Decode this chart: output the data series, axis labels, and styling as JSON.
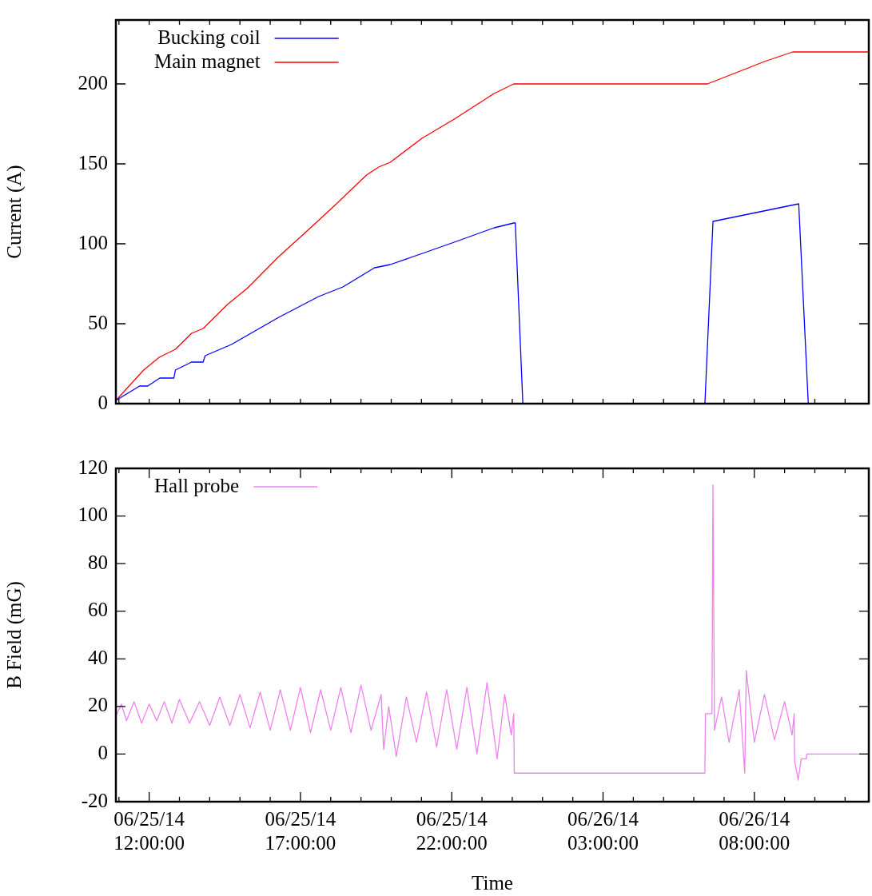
{
  "chart_data": [
    {
      "type": "line",
      "ylabel": "Current (A)",
      "legend": "top left",
      "grid": false,
      "tick_labels": "y",
      "xlim": [
        "--06-25T10:54",
        "--06-26T11:47"
      ],
      "xticks": [
        {
          "value": "--06-25T11:00",
          "label": null
        },
        {
          "value": "--06-25T12:00",
          "label": null
        },
        {
          "value": "--06-25T13:00",
          "label": null
        },
        {
          "value": "--06-25T14:00",
          "label": null
        },
        {
          "value": "--06-25T15:00",
          "label": null
        },
        {
          "value": "--06-25T16:00",
          "label": null
        },
        {
          "value": "--06-25T17:00",
          "label": null
        },
        {
          "value": "--06-25T18:00",
          "label": null
        },
        {
          "value": "--06-25T19:00",
          "label": null
        },
        {
          "value": "--06-25T20:00",
          "label": null
        },
        {
          "value": "--06-25T21:00",
          "label": null
        },
        {
          "value": "--06-25T22:00",
          "label": null
        },
        {
          "value": "--06-25T23:00",
          "label": null
        },
        {
          "value": "--06-26T00:00",
          "label": null
        },
        {
          "value": "--06-26T01:00",
          "label": null
        },
        {
          "value": "--06-26T02:00",
          "label": null
        },
        {
          "value": "--06-26T03:00",
          "label": null
        },
        {
          "value": "--06-26T04:00",
          "label": null
        },
        {
          "value": "--06-26T05:00",
          "label": null
        },
        {
          "value": "--06-26T06:00",
          "label": null
        },
        {
          "value": "--06-26T07:00",
          "label": null
        },
        {
          "value": "--06-26T08:00",
          "label": null
        },
        {
          "value": "--06-26T09:00",
          "label": null
        },
        {
          "value": "--06-26T10:00",
          "label": null
        },
        {
          "value": "--06-26T11:00",
          "label": null
        }
      ],
      "ylim": [
        0,
        240
      ],
      "yticks": [
        0,
        50,
        100,
        150,
        200
      ],
      "series": [
        {
          "name": "Bucking coil",
          "color": "#0000ff",
          "x": [
            "--06-25T10:54",
            "--06-25T11:41",
            "--06-25T11:57",
            "--06-25T12:21",
            "--06-25T12:49",
            "--06-25T12:52",
            "--06-25T13:24",
            "--06-25T13:47",
            "--06-25T13:51",
            "--06-25T14:43",
            "--06-25T16:17",
            "--06-25T17:36",
            "--06-25T18:24",
            "--06-25T19:27",
            "--06-25T19:58",
            "--06-25T21:02",
            "--06-25T22:05",
            "--06-25T23:24",
            "--06-26T00:03",
            "--06-26T00:06",
            "--06-26T00:21",
            "--06-26T06:22",
            "--06-26T06:38",
            "--06-26T09:28",
            "--06-26T09:47"
          ],
          "values": [
            2,
            11,
            11,
            16,
            16,
            21,
            26,
            26,
            30,
            37,
            54,
            67,
            73,
            85,
            87,
            94,
            101,
            110,
            113,
            113,
            0,
            0,
            114,
            125,
            0
          ]
        },
        {
          "name": "Main magnet",
          "color": "#ff0000",
          "x": [
            "--06-25T10:54",
            "--06-25T11:49",
            "--06-25T12:20",
            "--06-25T12:52",
            "--06-25T13:24",
            "--06-25T13:47",
            "--06-25T14:35",
            "--06-25T15:14",
            "--06-25T16:17",
            "--06-25T17:20",
            "--06-25T18:08",
            "--06-25T19:11",
            "--06-25T19:35",
            "--06-25T19:58",
            "--06-25T21:01",
            "--06-25T22:05",
            "--06-25T23:24",
            "--06-26T00:03",
            "--06-26T06:27",
            "--06-26T08:20",
            "--06-26T09:16",
            "--06-26T11:47"
          ],
          "values": [
            2,
            21,
            29,
            34,
            44,
            47,
            62,
            72,
            92,
            110,
            124,
            143,
            148,
            151,
            166,
            178,
            194,
            200,
            200,
            214,
            220,
            220
          ]
        }
      ]
    },
    {
      "type": "line",
      "xlabel": "Time",
      "ylabel": "B Field (mG)",
      "legend": "top left",
      "grid": false,
      "xlim": [
        "--06-25T10:54",
        "--06-26T11:47"
      ],
      "xticks": [
        {
          "value": "--06-25T11:00",
          "label": null
        },
        {
          "value": "--06-25T12:00",
          "label": "06/25/14\n12:00:00"
        },
        {
          "value": "--06-25T13:00",
          "label": null
        },
        {
          "value": "--06-25T14:00",
          "label": null
        },
        {
          "value": "--06-25T15:00",
          "label": null
        },
        {
          "value": "--06-25T16:00",
          "label": null
        },
        {
          "value": "--06-25T17:00",
          "label": "06/25/14\n17:00:00"
        },
        {
          "value": "--06-25T18:00",
          "label": null
        },
        {
          "value": "--06-25T19:00",
          "label": null
        },
        {
          "value": "--06-25T20:00",
          "label": null
        },
        {
          "value": "--06-25T21:00",
          "label": null
        },
        {
          "value": "--06-25T22:00",
          "label": "06/25/14\n22:00:00"
        },
        {
          "value": "--06-25T23:00",
          "label": null
        },
        {
          "value": "--06-26T00:00",
          "label": null
        },
        {
          "value": "--06-26T01:00",
          "label": null
        },
        {
          "value": "--06-26T02:00",
          "label": null
        },
        {
          "value": "--06-26T03:00",
          "label": "06/26/14\n03:00:00"
        },
        {
          "value": "--06-26T04:00",
          "label": null
        },
        {
          "value": "--06-26T05:00",
          "label": null
        },
        {
          "value": "--06-26T06:00",
          "label": null
        },
        {
          "value": "--06-26T07:00",
          "label": null
        },
        {
          "value": "--06-26T08:00",
          "label": "06/26/14\n08:00:00"
        },
        {
          "value": "--06-26T09:00",
          "label": null
        },
        {
          "value": "--06-26T10:00",
          "label": null
        },
        {
          "value": "--06-26T11:00",
          "label": null
        }
      ],
      "ylim": [
        -20,
        120
      ],
      "yticks": [
        -20,
        0,
        20,
        40,
        60,
        80,
        100,
        120
      ],
      "series": [
        {
          "name": "Hall probe",
          "color": "#ee82ee",
          "x": [
            "--06-25T10:54",
            "--06-25T11:05",
            "--06-25T11:15",
            "--06-25T11:30",
            "--06-25T11:45",
            "--06-25T12:00",
            "--06-25T12:15",
            "--06-25T12:30",
            "--06-25T12:45",
            "--06-25T13:00",
            "--06-25T13:20",
            "--06-25T13:40",
            "--06-25T14:00",
            "--06-25T14:20",
            "--06-25T14:40",
            "--06-25T15:00",
            "--06-25T15:20",
            "--06-25T15:40",
            "--06-25T16:00",
            "--06-25T16:20",
            "--06-25T16:40",
            "--06-25T17:00",
            "--06-25T17:20",
            "--06-25T17:40",
            "--06-25T18:00",
            "--06-25T18:20",
            "--06-25T18:40",
            "--06-25T19:00",
            "--06-25T19:20",
            "--06-25T19:40",
            "--06-25T19:45",
            "--06-25T19:55",
            "--06-25T20:10",
            "--06-25T20:30",
            "--06-25T20:50",
            "--06-25T21:10",
            "--06-25T21:30",
            "--06-25T21:50",
            "--06-25T22:10",
            "--06-25T22:30",
            "--06-25T22:50",
            "--06-25T23:10",
            "--06-25T23:30",
            "--06-25T23:45",
            "--06-25T23:58",
            "--06-26T00:03",
            "--06-26T00:04",
            "--06-26T06:22",
            "--06-26T06:23",
            "--06-26T06:36",
            "--06-26T06:38",
            "--06-26T06:41",
            "--06-26T06:55",
            "--06-26T07:10",
            "--06-26T07:30",
            "--06-26T07:41",
            "--06-26T07:44",
            "--06-26T08:00",
            "--06-26T08:20",
            "--06-26T08:40",
            "--06-26T09:00",
            "--06-26T09:15",
            "--06-26T09:19",
            "--06-26T09:20",
            "--06-26T09:27",
            "--06-26T09:33",
            "--06-26T09:43",
            "--06-26T09:44",
            "--06-26T11:47"
          ],
          "values": [
            16,
            21,
            14,
            22,
            13,
            21,
            14,
            22,
            13,
            23,
            13,
            22,
            12,
            24,
            12,
            25,
            11,
            26,
            10,
            27,
            10,
            28,
            9,
            27,
            10,
            28,
            9,
            29,
            10,
            25,
            2,
            20,
            -1,
            24,
            5,
            26,
            3,
            27,
            2,
            28,
            0,
            30,
            -2,
            25,
            8,
            17,
            -8,
            -8,
            17,
            17,
            113,
            10,
            24,
            5,
            27,
            -8,
            35,
            5,
            25,
            6,
            22,
            8,
            17,
            -3,
            -11,
            -2,
            -2,
            0,
            0
          ]
        }
      ]
    }
  ]
}
